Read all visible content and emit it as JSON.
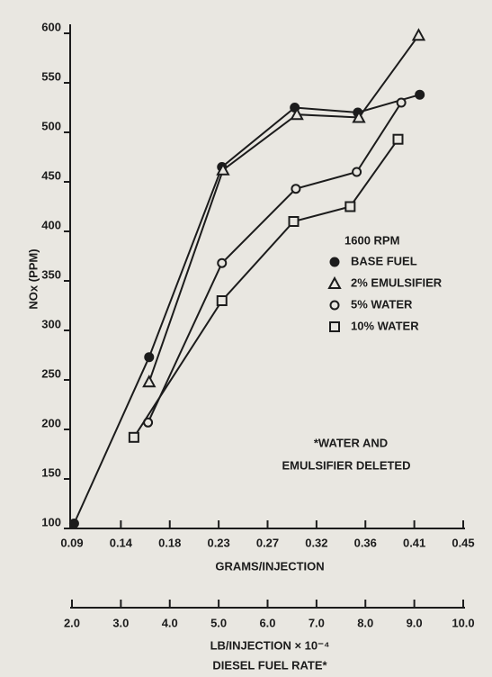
{
  "chart_data": {
    "type": "line",
    "y_label": "NOx (PPM)",
    "x_label": "GRAMS/INJECTION",
    "x2_label": "LB/INJECTION × 10⁻⁴",
    "x2_title": "DIESEL FUEL RATE*",
    "legend_title": "1600 RPM",
    "annotations": [
      "*WATER AND",
      "EMULSIFIER DELETED"
    ],
    "xlim": [
      0.09,
      0.45
    ],
    "xticks": [
      {
        "value": 0.09,
        "label": "0.09"
      },
      {
        "value": 0.135,
        "label": "0.14"
      },
      {
        "value": 0.18,
        "label": "0.18"
      },
      {
        "value": 0.225,
        "label": "0.23"
      },
      {
        "value": 0.27,
        "label": "0.27"
      },
      {
        "value": 0.315,
        "label": "0.32"
      },
      {
        "value": 0.36,
        "label": "0.36"
      },
      {
        "value": 0.405,
        "label": "0.41"
      },
      {
        "value": 0.45,
        "label": "0.45"
      }
    ],
    "x2lim": [
      2,
      10
    ],
    "x2ticks": [
      {
        "value": 2,
        "label": "2.0"
      },
      {
        "value": 3,
        "label": "3.0"
      },
      {
        "value": 4,
        "label": "4.0"
      },
      {
        "value": 5,
        "label": "5.0"
      },
      {
        "value": 6,
        "label": "6.0"
      },
      {
        "value": 7,
        "label": "7.0"
      },
      {
        "value": 8,
        "label": "8.0"
      },
      {
        "value": 9,
        "label": "9.0"
      },
      {
        "value": 10,
        "label": "10.0"
      }
    ],
    "ylim": [
      100,
      600
    ],
    "yticks": [
      100,
      150,
      200,
      250,
      300,
      350,
      400,
      450,
      500,
      550,
      600
    ],
    "color": "#1c1c1c",
    "series": [
      {
        "name": "BASE FUEL",
        "marker": "filled-circle",
        "x": [
          0.092,
          0.161,
          0.228,
          0.295,
          0.353,
          0.41
        ],
        "values": [
          105,
          273,
          465,
          525,
          520,
          538
        ]
      },
      {
        "name": "2% EMULSIFIER",
        "marker": "triangle",
        "x": [
          0.161,
          0.229,
          0.297,
          0.354,
          0.409
        ],
        "values": [
          248,
          462,
          518,
          515,
          598
        ]
      },
      {
        "name": "5% WATER",
        "marker": "circle",
        "x": [
          0.16,
          0.228,
          0.296,
          0.352,
          0.393
        ],
        "values": [
          207,
          368,
          443,
          460,
          530
        ]
      },
      {
        "name": "10% WATER",
        "marker": "square",
        "x": [
          0.147,
          0.228,
          0.294,
          0.346,
          0.39
        ],
        "values": [
          192,
          330,
          410,
          425,
          493
        ]
      }
    ]
  }
}
